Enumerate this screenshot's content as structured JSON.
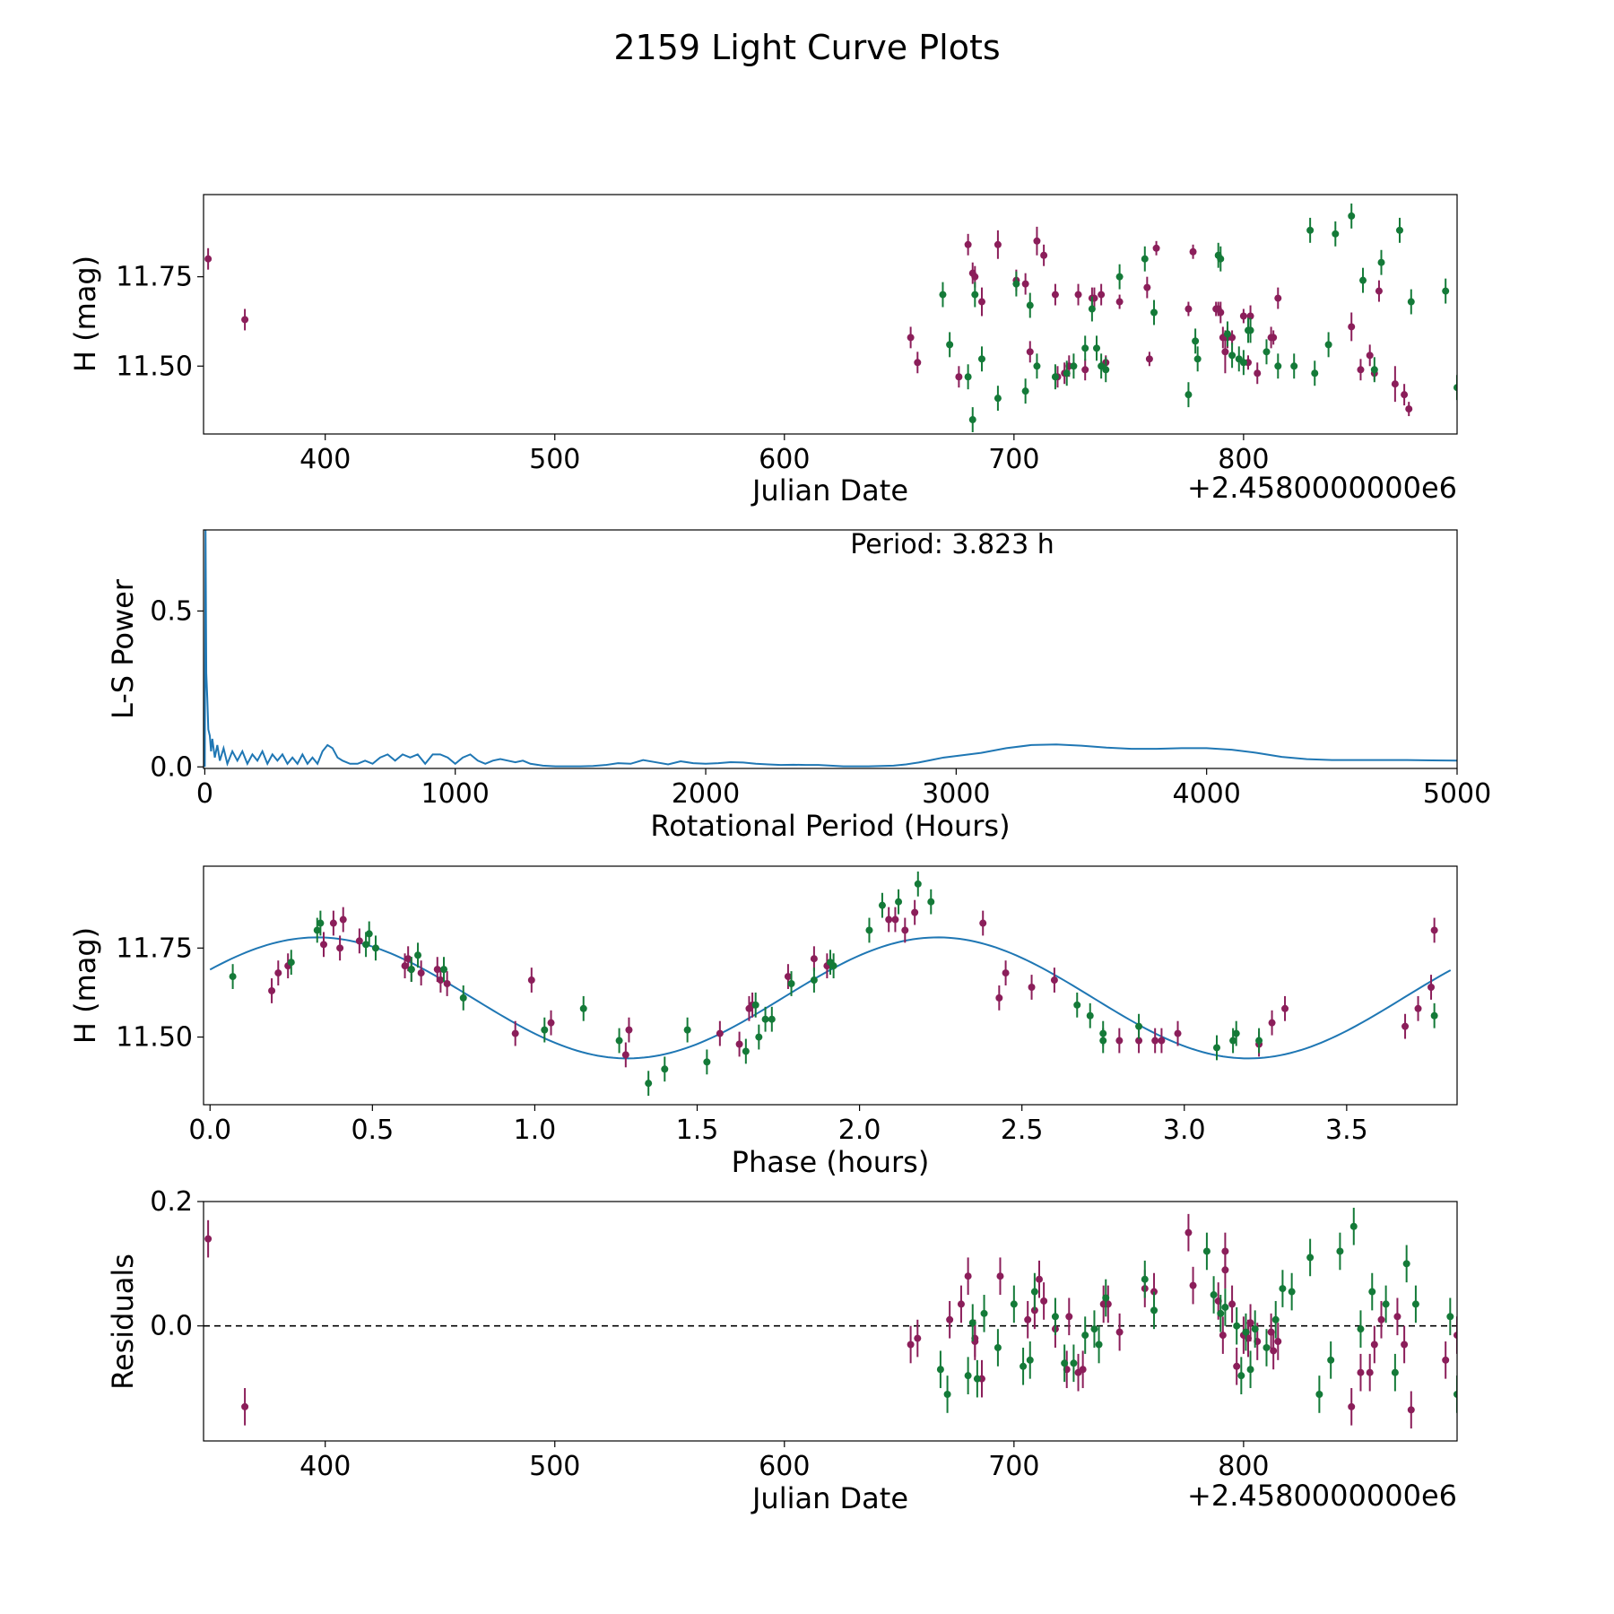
{
  "figure": {
    "title": "2159 Light Curve Plots",
    "colors": {
      "filter_r": "#8b1e5a",
      "filter_g": "#147a38",
      "curve": "#1f77b4",
      "axis": "#000000"
    }
  },
  "chart_data": [
    {
      "type": "scatter",
      "name": "lightcurve",
      "xlabel": "Julian Date",
      "ylabel": "H (mag)",
      "offset_text": "+2.4580000000e6",
      "xlim": [
        347,
        893
      ],
      "ylim": [
        11.31,
        11.98
      ],
      "xticks": [
        400,
        500,
        600,
        700,
        800
      ],
      "xtick_labels": [
        "400",
        "500",
        "600",
        "700",
        "800"
      ],
      "yticks": [
        11.5,
        11.75
      ],
      "ytick_labels": [
        "11.50",
        "11.75"
      ],
      "series": [
        {
          "name": "r",
          "color": "#8b1e5a",
          "x": [
            349,
            365,
            655,
            658,
            676,
            680,
            682,
            683,
            686,
            693,
            701,
            705,
            707,
            710,
            713,
            718,
            719,
            722,
            724,
            728,
            731,
            734,
            735,
            738,
            740,
            746,
            758,
            759,
            762,
            776,
            778,
            788,
            789,
            790,
            791,
            792,
            793,
            795,
            800,
            802,
            803,
            806,
            812,
            813,
            815,
            847,
            851,
            855,
            857,
            859,
            866,
            870,
            872
          ],
          "y": [
            11.8,
            11.63,
            11.58,
            11.51,
            11.47,
            11.84,
            11.76,
            11.75,
            11.68,
            11.84,
            11.74,
            11.73,
            11.54,
            11.85,
            11.81,
            11.7,
            11.47,
            11.48,
            11.5,
            11.7,
            11.49,
            11.69,
            11.69,
            11.7,
            11.51,
            11.68,
            11.72,
            11.52,
            11.83,
            11.66,
            11.82,
            11.66,
            11.66,
            11.65,
            11.58,
            11.54,
            11.58,
            11.58,
            11.64,
            11.51,
            11.64,
            11.48,
            11.58,
            11.58,
            11.69,
            11.61,
            11.49,
            11.53,
            11.48,
            11.71,
            11.45,
            11.42,
            11.38
          ],
          "yerr": [
            0.03,
            0.03,
            0.03,
            0.03,
            0.03,
            0.03,
            0.03,
            0.03,
            0.04,
            0.04,
            0.03,
            0.03,
            0.03,
            0.04,
            0.03,
            0.03,
            0.03,
            0.03,
            0.03,
            0.03,
            0.03,
            0.03,
            0.03,
            0.03,
            0.02,
            0.02,
            0.03,
            0.02,
            0.02,
            0.02,
            0.02,
            0.02,
            0.02,
            0.03,
            0.03,
            0.06,
            0.03,
            0.02,
            0.02,
            0.02,
            0.03,
            0.03,
            0.03,
            0.02,
            0.03,
            0.04,
            0.03,
            0.03,
            0.02,
            0.03,
            0.05,
            0.03,
            0.02
          ]
        },
        {
          "name": "g",
          "color": "#147a38",
          "x": [
            669,
            672,
            680,
            682,
            683,
            686,
            693,
            701,
            705,
            707,
            710,
            718,
            723,
            726,
            731,
            734,
            736,
            738,
            740,
            746,
            757,
            761,
            776,
            779,
            780,
            789,
            790,
            793,
            795,
            798,
            800,
            802,
            803,
            810,
            815,
            822,
            829,
            831,
            837,
            840,
            847,
            852,
            857,
            860,
            868,
            873,
            888,
            893
          ],
          "y": [
            11.7,
            11.56,
            11.47,
            11.35,
            11.7,
            11.52,
            11.41,
            11.73,
            11.43,
            11.67,
            11.5,
            11.47,
            11.48,
            11.5,
            11.55,
            11.66,
            11.55,
            11.5,
            11.49,
            11.75,
            11.8,
            11.65,
            11.42,
            11.57,
            11.52,
            11.81,
            11.8,
            11.59,
            11.53,
            11.52,
            11.51,
            11.6,
            11.6,
            11.54,
            11.5,
            11.5,
            11.88,
            11.48,
            11.56,
            11.87,
            11.92,
            11.74,
            11.49,
            11.79,
            11.88,
            11.68,
            11.71,
            11.44
          ]
        }
      ]
    },
    {
      "type": "line",
      "name": "periodogram",
      "xlabel": "Rotational Period (Hours)",
      "ylabel": "L-S Power",
      "annotation": "Period: 3.823 h",
      "xlim": [
        -5,
        5000
      ],
      "ylim": [
        -0.005,
        0.76
      ],
      "xticks": [
        0,
        1000,
        2000,
        3000,
        4000,
        5000
      ],
      "xtick_labels": [
        "0",
        "1000",
        "2000",
        "3000",
        "4000",
        "5000"
      ],
      "yticks": [
        0.0,
        0.5
      ],
      "ytick_labels": [
        "0.0",
        "0.5"
      ],
      "x": [
        0,
        3,
        6,
        10,
        14,
        20,
        25,
        30,
        40,
        50,
        60,
        75,
        90,
        110,
        130,
        150,
        170,
        190,
        210,
        230,
        250,
        270,
        290,
        310,
        330,
        350,
        370,
        390,
        410,
        430,
        450,
        470,
        490,
        510,
        530,
        550,
        580,
        610,
        640,
        670,
        700,
        730,
        760,
        790,
        820,
        850,
        880,
        910,
        940,
        970,
        1000,
        1030,
        1060,
        1090,
        1120,
        1150,
        1180,
        1210,
        1240,
        1270,
        1300,
        1350,
        1400,
        1450,
        1500,
        1550,
        1600,
        1650,
        1700,
        1750,
        1800,
        1850,
        1900,
        1950,
        2000,
        2050,
        2100,
        2150,
        2200,
        2250,
        2300,
        2350,
        2400,
        2450,
        2500,
        2550,
        2600,
        2650,
        2700,
        2750,
        2800,
        2850,
        2900,
        2950,
        3000,
        3100,
        3200,
        3300,
        3400,
        3500,
        3600,
        3700,
        3800,
        3900,
        4000,
        4100,
        4200,
        4300,
        4400,
        4500,
        4600,
        4700,
        4800,
        4900,
        5000
      ],
      "y": [
        0.0,
        0.76,
        0.3,
        0.22,
        0.12,
        0.1,
        0.05,
        0.09,
        0.03,
        0.07,
        0.02,
        0.06,
        0.01,
        0.05,
        0.02,
        0.05,
        0.01,
        0.04,
        0.02,
        0.05,
        0.01,
        0.04,
        0.02,
        0.04,
        0.01,
        0.03,
        0.01,
        0.04,
        0.01,
        0.03,
        0.01,
        0.05,
        0.07,
        0.06,
        0.03,
        0.02,
        0.01,
        0.01,
        0.02,
        0.01,
        0.03,
        0.04,
        0.02,
        0.04,
        0.03,
        0.04,
        0.01,
        0.04,
        0.04,
        0.03,
        0.01,
        0.03,
        0.04,
        0.02,
        0.01,
        0.02,
        0.025,
        0.02,
        0.015,
        0.02,
        0.01,
        0.004,
        0.002,
        0.002,
        0.002,
        0.003,
        0.006,
        0.012,
        0.01,
        0.022,
        0.015,
        0.008,
        0.018,
        0.012,
        0.01,
        0.012,
        0.015,
        0.014,
        0.01,
        0.008,
        0.006,
        0.007,
        0.006,
        0.006,
        0.004,
        0.002,
        0.002,
        0.002,
        0.003,
        0.004,
        0.008,
        0.014,
        0.022,
        0.03,
        0.035,
        0.045,
        0.06,
        0.07,
        0.072,
        0.068,
        0.062,
        0.058,
        0.058,
        0.06,
        0.06,
        0.055,
        0.045,
        0.032,
        0.025,
        0.022,
        0.022,
        0.022,
        0.022,
        0.021,
        0.02
      ]
    },
    {
      "type": "scatter",
      "name": "phased",
      "xlabel": "Phase (hours)",
      "ylabel": "H (mag)",
      "xlim": [
        -0.02,
        3.84
      ],
      "ylim": [
        11.31,
        11.98
      ],
      "xticks": [
        0.0,
        0.5,
        1.0,
        1.5,
        2.0,
        2.5,
        3.0,
        3.5
      ],
      "xtick_labels": [
        "0.0",
        "0.5",
        "1.0",
        "1.5",
        "2.0",
        "2.5",
        "3.0",
        "3.5"
      ],
      "yticks": [
        11.5,
        11.75
      ],
      "ytick_labels": [
        "11.50",
        "11.75"
      ],
      "model": {
        "mean": 11.61,
        "amplitude": 0.17,
        "period": 1.9115,
        "peak_phase": 0.33
      },
      "series": [
        {
          "name": "r",
          "color": "#8b1e5a",
          "x": [
            0.19,
            0.21,
            0.24,
            0.35,
            0.38,
            0.4,
            0.41,
            0.46,
            0.6,
            0.61,
            0.62,
            0.65,
            0.7,
            0.71,
            0.73,
            0.94,
            0.99,
            1.05,
            1.28,
            1.29,
            1.57,
            1.63,
            1.66,
            1.67,
            1.78,
            1.86,
            1.9,
            2.09,
            2.11,
            2.14,
            2.17,
            2.38,
            2.43,
            2.45,
            2.53,
            2.6,
            2.8,
            2.86,
            2.91,
            2.93,
            2.98,
            3.23,
            3.27,
            3.31,
            3.68,
            3.72,
            3.76,
            3.77
          ],
          "y": [
            11.63,
            11.68,
            11.7,
            11.76,
            11.82,
            11.75,
            11.83,
            11.77,
            11.7,
            11.72,
            11.69,
            11.68,
            11.69,
            11.66,
            11.65,
            11.51,
            11.66,
            11.54,
            11.45,
            11.52,
            11.51,
            11.48,
            11.58,
            11.59,
            11.67,
            11.72,
            11.7,
            11.83,
            11.83,
            11.8,
            11.85,
            11.82,
            11.61,
            11.68,
            11.64,
            11.66,
            11.49,
            11.49,
            11.49,
            11.49,
            11.51,
            11.48,
            11.54,
            11.58,
            11.53,
            11.58,
            11.64,
            11.8
          ]
        },
        {
          "name": "g",
          "color": "#147a38",
          "x": [
            0.07,
            0.25,
            0.33,
            0.34,
            0.48,
            0.49,
            0.51,
            0.62,
            0.64,
            0.72,
            0.78,
            1.03,
            1.15,
            1.26,
            1.35,
            1.4,
            1.47,
            1.53,
            1.65,
            1.68,
            1.69,
            1.71,
            1.73,
            1.79,
            1.86,
            1.91,
            1.92,
            2.03,
            2.07,
            2.12,
            2.18,
            2.22,
            2.67,
            2.71,
            2.75,
            2.75,
            2.86,
            3.1,
            3.15,
            3.16,
            3.23,
            3.77
          ],
          "y": [
            11.67,
            11.71,
            11.8,
            11.82,
            11.76,
            11.79,
            11.75,
            11.69,
            11.73,
            11.69,
            11.61,
            11.52,
            11.58,
            11.49,
            11.37,
            11.41,
            11.52,
            11.43,
            11.46,
            11.59,
            11.5,
            11.55,
            11.55,
            11.65,
            11.66,
            11.71,
            11.7,
            11.8,
            11.87,
            11.88,
            11.93,
            11.88,
            11.59,
            11.56,
            11.49,
            11.51,
            11.53,
            11.47,
            11.49,
            11.51,
            11.49,
            11.56
          ]
        }
      ]
    },
    {
      "type": "scatter",
      "name": "residuals",
      "xlabel": "Julian Date",
      "ylabel": "Residuals",
      "offset_text": "+2.4580000000e6",
      "xlim": [
        347,
        893
      ],
      "ylim": [
        -0.185,
        0.2
      ],
      "xticks": [
        400,
        500,
        600,
        700,
        800
      ],
      "xtick_labels": [
        "400",
        "500",
        "600",
        "700",
        "800"
      ],
      "yticks": [
        0.0,
        0.2
      ],
      "ytick_labels": [
        "0.0",
        "0.2"
      ],
      "zero_line": 0.0,
      "series": [
        {
          "name": "r",
          "color": "#8b1e5a",
          "x": [
            349,
            365,
            655,
            658,
            672,
            677,
            680,
            683,
            683,
            686,
            694,
            706,
            709,
            711,
            713,
            718,
            723,
            724,
            728,
            730,
            739,
            741,
            746,
            757,
            761,
            776,
            778,
            789,
            791,
            792,
            792,
            795,
            797,
            800,
            802,
            803,
            806,
            812,
            813,
            815,
            847,
            851,
            855,
            857,
            860,
            867,
            870,
            873,
            888,
            893
          ],
          "y": [
            0.14,
            -0.13,
            -0.03,
            -0.02,
            0.01,
            0.035,
            0.08,
            -0.02,
            -0.025,
            -0.085,
            0.08,
            0.01,
            0.025,
            0.075,
            0.04,
            -0.005,
            -0.07,
            0.015,
            -0.075,
            -0.07,
            0.035,
            0.035,
            -0.01,
            0.06,
            0.055,
            0.15,
            0.065,
            0.04,
            -0.015,
            0.12,
            0.09,
            0.035,
            -0.065,
            -0.015,
            -0.02,
            0.005,
            -0.025,
            -0.01,
            -0.04,
            -0.025,
            -0.13,
            -0.075,
            -0.075,
            -0.03,
            0.01,
            0.015,
            -0.03,
            -0.135,
            -0.055,
            -0.015
          ]
        },
        {
          "name": "g",
          "color": "#147a38",
          "x": [
            668,
            671,
            680,
            682,
            684,
            687,
            693,
            700,
            704,
            707,
            709,
            718,
            722,
            726,
            731,
            735,
            737,
            740,
            757,
            761,
            784,
            787,
            790,
            792,
            797,
            799,
            801,
            803,
            805,
            810,
            814,
            817,
            821,
            829,
            833,
            838,
            842,
            848,
            851,
            856,
            862,
            866,
            871,
            875,
            890,
            893
          ],
          "y": [
            -0.07,
            -0.11,
            -0.08,
            0.005,
            -0.085,
            0.02,
            -0.035,
            0.035,
            -0.065,
            -0.055,
            0.055,
            0.015,
            -0.06,
            -0.06,
            -0.015,
            -0.005,
            -0.03,
            0.045,
            0.075,
            0.025,
            0.12,
            0.05,
            0.02,
            0.03,
            0.0,
            -0.08,
            -0.01,
            -0.07,
            -0.005,
            -0.035,
            0.01,
            0.06,
            0.055,
            0.11,
            -0.11,
            -0.055,
            0.12,
            0.16,
            -0.005,
            0.055,
            0.035,
            -0.075,
            0.1,
            0.035,
            0.015,
            -0.11
          ]
        }
      ]
    }
  ]
}
